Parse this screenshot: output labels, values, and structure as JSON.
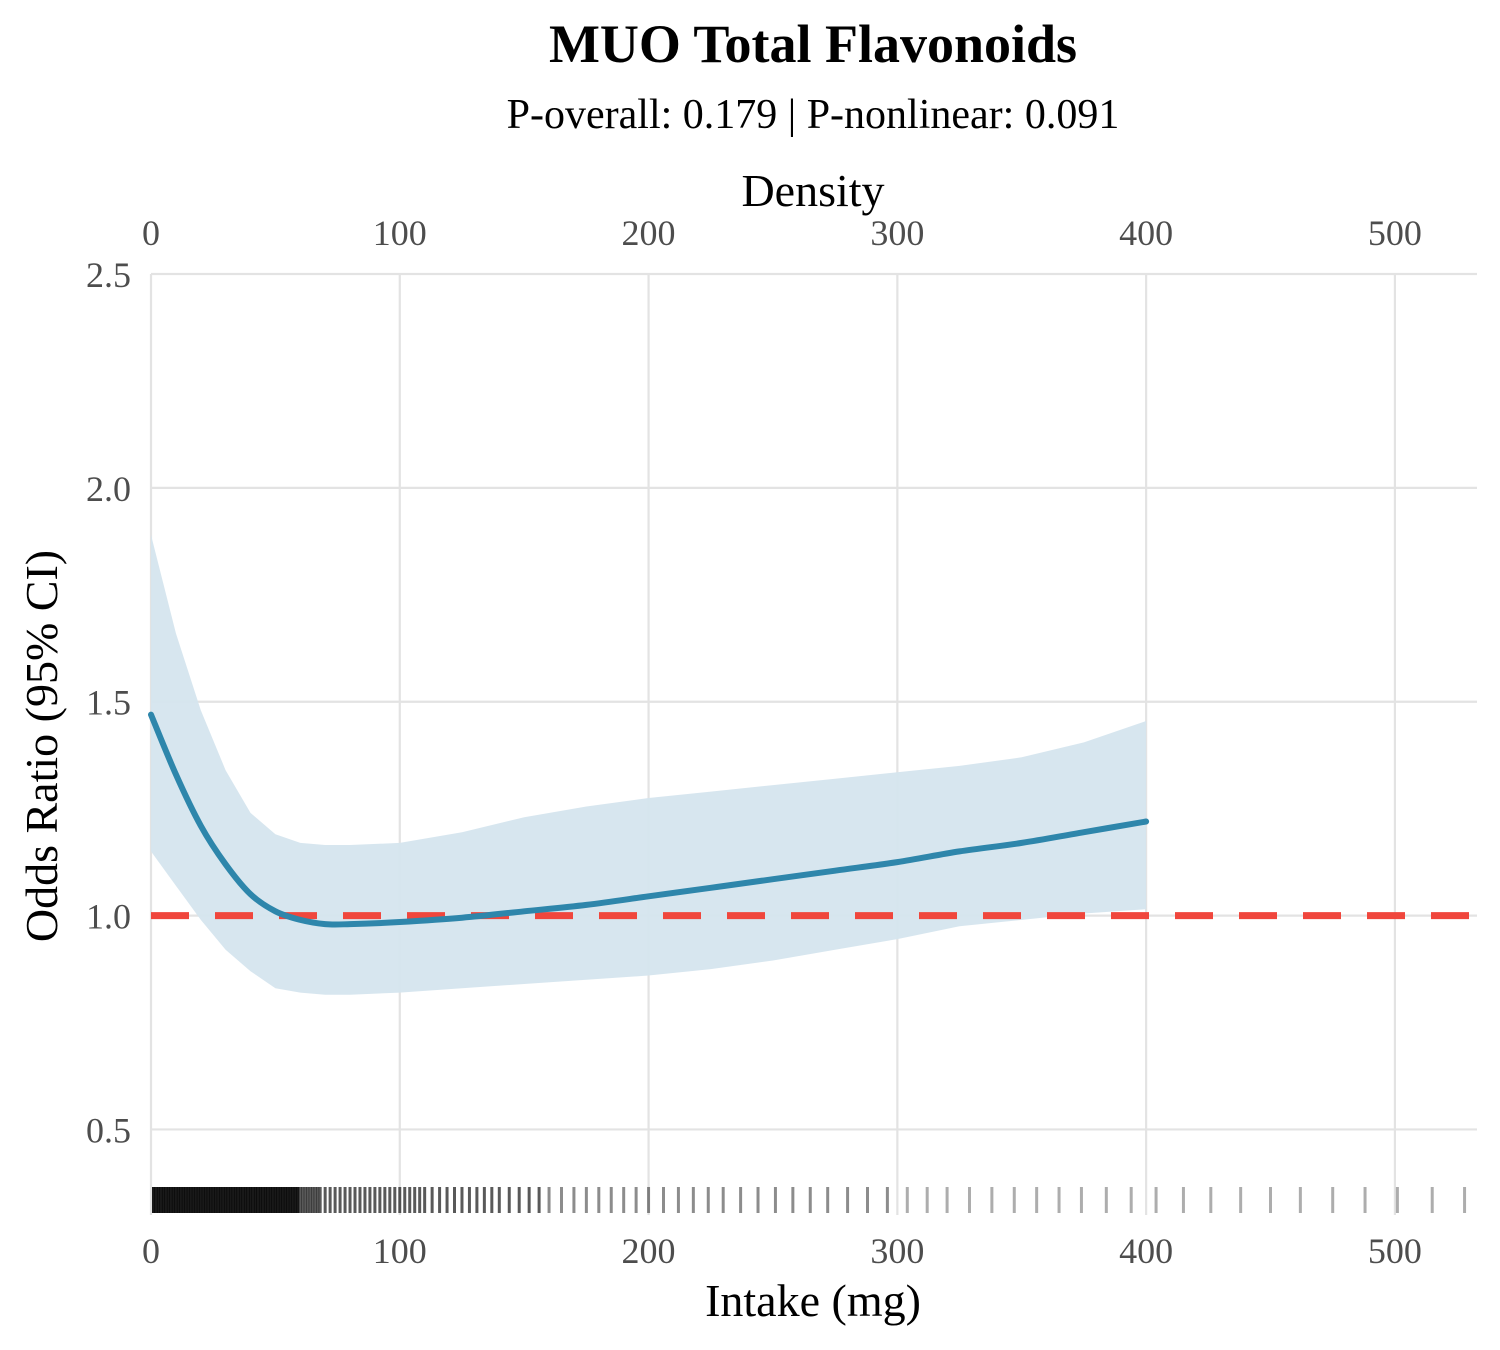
{
  "chart_data": {
    "type": "line",
    "title": "MUO Total Flavonoids",
    "subtitle": "P-overall: 0.179 | P-nonlinear: 0.091",
    "xlabel": "Intake (mg)",
    "ylabel": "Odds Ratio (95% CI)",
    "top_axis_label": "Density",
    "xlim": [
      0,
      533
    ],
    "ylim": [
      0.3,
      2.5
    ],
    "x_ticks": [
      "0",
      "100",
      "200",
      "300",
      "400",
      "500"
    ],
    "y_ticks": [
      "0.5",
      "1.0",
      "1.5",
      "2.0",
      "2.5"
    ],
    "x_tick_values": [
      0,
      100,
      200,
      300,
      400,
      500
    ],
    "y_tick_values": [
      0.5,
      1.0,
      1.5,
      2.0,
      2.5
    ],
    "grid": true,
    "reference_line": {
      "y": 1.0,
      "style": "dashed",
      "color": "#f0463c"
    },
    "series": [
      {
        "x": [
          0,
          10,
          20,
          30,
          40,
          50,
          60,
          70,
          80,
          100,
          125,
          150,
          175,
          200,
          225,
          250,
          275,
          300,
          325,
          350,
          375,
          400
        ],
        "y": [
          1.47,
          1.33,
          1.21,
          1.12,
          1.05,
          1.01,
          0.99,
          0.98,
          0.98,
          0.985,
          0.995,
          1.01,
          1.025,
          1.045,
          1.065,
          1.085,
          1.105,
          1.125,
          1.15,
          1.17,
          1.195,
          1.22
        ],
        "lower": [
          1.15,
          1.07,
          0.99,
          0.92,
          0.87,
          0.83,
          0.82,
          0.815,
          0.815,
          0.82,
          0.83,
          0.84,
          0.85,
          0.86,
          0.875,
          0.895,
          0.92,
          0.945,
          0.975,
          0.99,
          1.005,
          1.015
        ],
        "upper": [
          1.89,
          1.66,
          1.48,
          1.34,
          1.24,
          1.19,
          1.17,
          1.165,
          1.165,
          1.17,
          1.195,
          1.23,
          1.255,
          1.275,
          1.29,
          1.305,
          1.32,
          1.335,
          1.35,
          1.37,
          1.405,
          1.455
        ],
        "color": "#2e86ab",
        "ci_color": "#d5e5ee"
      }
    ],
    "rug": {
      "description": "intake observations shown as rug marks",
      "values": [
        1,
        2,
        3,
        4,
        5,
        6,
        7,
        8,
        9,
        10,
        11,
        12,
        13,
        14,
        15,
        16,
        17,
        18,
        19,
        20,
        21,
        22,
        23,
        24,
        25,
        26,
        27,
        28,
        29,
        30,
        31,
        32,
        33,
        34,
        35,
        36,
        37,
        38,
        39,
        40,
        41,
        42,
        43,
        44,
        45,
        46,
        47,
        48,
        49,
        50,
        51,
        52,
        53,
        54,
        55,
        56,
        57,
        58,
        59,
        60,
        61,
        62,
        63,
        64,
        65,
        66,
        67,
        68,
        70,
        72,
        74,
        76,
        78,
        80,
        82,
        84,
        86,
        88,
        90,
        92,
        94,
        96,
        98,
        100,
        102,
        104,
        106,
        108,
        110,
        113,
        116,
        119,
        122,
        125,
        128,
        131,
        134,
        137,
        140,
        144,
        148,
        152,
        156,
        160,
        165,
        170,
        175,
        180,
        185,
        190,
        195,
        200,
        206,
        212,
        218,
        224,
        230,
        237,
        244,
        251,
        258,
        265,
        272,
        280,
        288,
        296,
        304,
        312,
        320,
        329,
        338,
        347,
        356,
        365,
        374,
        384,
        394,
        404,
        415,
        426,
        438,
        450,
        462,
        475,
        488,
        501,
        515,
        528
      ]
    }
  }
}
